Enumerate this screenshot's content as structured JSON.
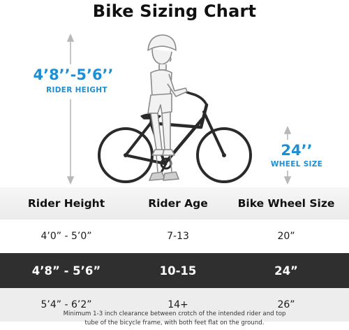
{
  "title": "Bike Sizing Chart",
  "rider_height_callout": {
    "value": "4’8’’-5’6’’",
    "label": "RIDER HEIGHT"
  },
  "wheel_size_callout": {
    "value": "24’’",
    "label": "WHEEL SIZE"
  },
  "accent_color": "#1d8fd4",
  "table": {
    "headers": [
      "Rider Height",
      "Rider Age",
      "Bike Wheel Size"
    ],
    "rows": [
      {
        "height": "4’0”  - 5’0”",
        "age": "7-13",
        "wheel": "20”",
        "highlighted": false
      },
      {
        "height": "4’8”  - 5’6”",
        "age": "10-15",
        "wheel": "24”",
        "highlighted": true
      },
      {
        "height": "5’4”  - 6’2”",
        "age": "14+",
        "wheel": "26”",
        "highlighted": false
      }
    ]
  },
  "note": {
    "line1": "Minimum 1-3 inch clearance between crotch of the intended rider and top",
    "line2": "tube of the bicycle frame, with both feet flat on the ground."
  }
}
